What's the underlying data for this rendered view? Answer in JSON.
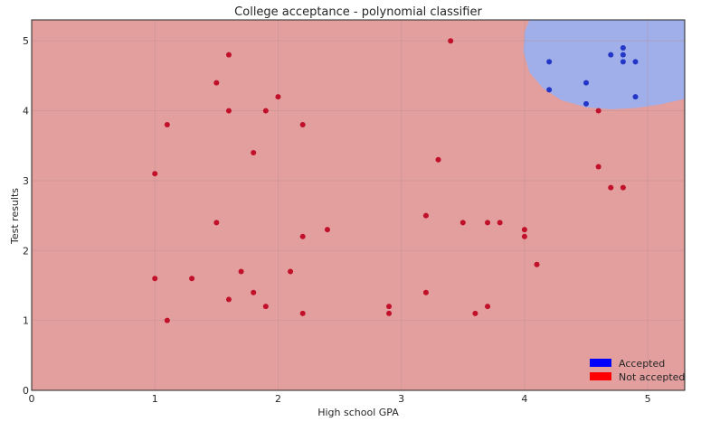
{
  "chart_data": {
    "type": "scatter",
    "title": "College acceptance - polynomial classifier",
    "xlabel": "High school GPA",
    "ylabel": "Test results",
    "xlim": [
      0,
      5.3
    ],
    "ylim": [
      0,
      5.3
    ],
    "xticks": [
      0,
      1,
      2,
      3,
      4,
      5
    ],
    "yticks": [
      0,
      1,
      2,
      3,
      4,
      5
    ],
    "grid": true,
    "legend_position": "bottom-right",
    "colors": {
      "accepted_region": "#a0aee9",
      "not_accepted_region": "#e39e9e",
      "accepted_point": "#2436c8",
      "not_accepted_point": "#c0102a",
      "legend_accepted": "#0000ff",
      "legend_not_accepted": "#ff0000"
    },
    "series": [
      {
        "name": "Accepted",
        "points": [
          [
            4.2,
            4.7
          ],
          [
            4.2,
            4.3
          ],
          [
            4.5,
            4.4
          ],
          [
            4.5,
            4.1
          ],
          [
            4.7,
            4.8
          ],
          [
            4.8,
            4.9
          ],
          [
            4.8,
            4.8
          ],
          [
            4.8,
            4.7
          ],
          [
            4.9,
            4.7
          ],
          [
            4.9,
            4.2
          ]
        ]
      },
      {
        "name": "Not accepted",
        "points": [
          [
            1.0,
            3.1
          ],
          [
            1.0,
            1.6
          ],
          [
            1.1,
            3.8
          ],
          [
            1.1,
            1.0
          ],
          [
            1.3,
            1.6
          ],
          [
            1.5,
            4.4
          ],
          [
            1.5,
            2.4
          ],
          [
            1.6,
            4.8
          ],
          [
            1.6,
            4.0
          ],
          [
            1.6,
            1.3
          ],
          [
            1.7,
            1.7
          ],
          [
            1.8,
            3.4
          ],
          [
            1.8,
            1.4
          ],
          [
            1.9,
            4.0
          ],
          [
            1.9,
            1.2
          ],
          [
            2.0,
            4.2
          ],
          [
            2.1,
            1.7
          ],
          [
            2.2,
            3.8
          ],
          [
            2.2,
            2.2
          ],
          [
            2.2,
            1.1
          ],
          [
            2.4,
            2.3
          ],
          [
            2.9,
            1.2
          ],
          [
            2.9,
            1.1
          ],
          [
            3.2,
            2.5
          ],
          [
            3.2,
            1.4
          ],
          [
            3.3,
            3.3
          ],
          [
            3.4,
            5.0
          ],
          [
            3.5,
            2.4
          ],
          [
            3.6,
            1.1
          ],
          [
            3.7,
            2.4
          ],
          [
            3.7,
            1.2
          ],
          [
            3.8,
            2.4
          ],
          [
            4.0,
            2.3
          ],
          [
            4.0,
            2.2
          ],
          [
            4.1,
            1.8
          ],
          [
            4.6,
            4.0
          ],
          [
            4.6,
            3.2
          ],
          [
            4.7,
            2.9
          ],
          [
            4.8,
            2.9
          ]
        ]
      }
    ],
    "decision_region": {
      "accepted_label": "Accepted",
      "boundary": [
        [
          4.04,
          5.3
        ],
        [
          4.0,
          5.12
        ],
        [
          3.99,
          4.85
        ],
        [
          4.04,
          4.55
        ],
        [
          4.15,
          4.32
        ],
        [
          4.3,
          4.15
        ],
        [
          4.5,
          4.05
        ],
        [
          4.7,
          4.02
        ],
        [
          4.9,
          4.04
        ],
        [
          5.1,
          4.09
        ],
        [
          5.3,
          4.17
        ]
      ]
    }
  }
}
